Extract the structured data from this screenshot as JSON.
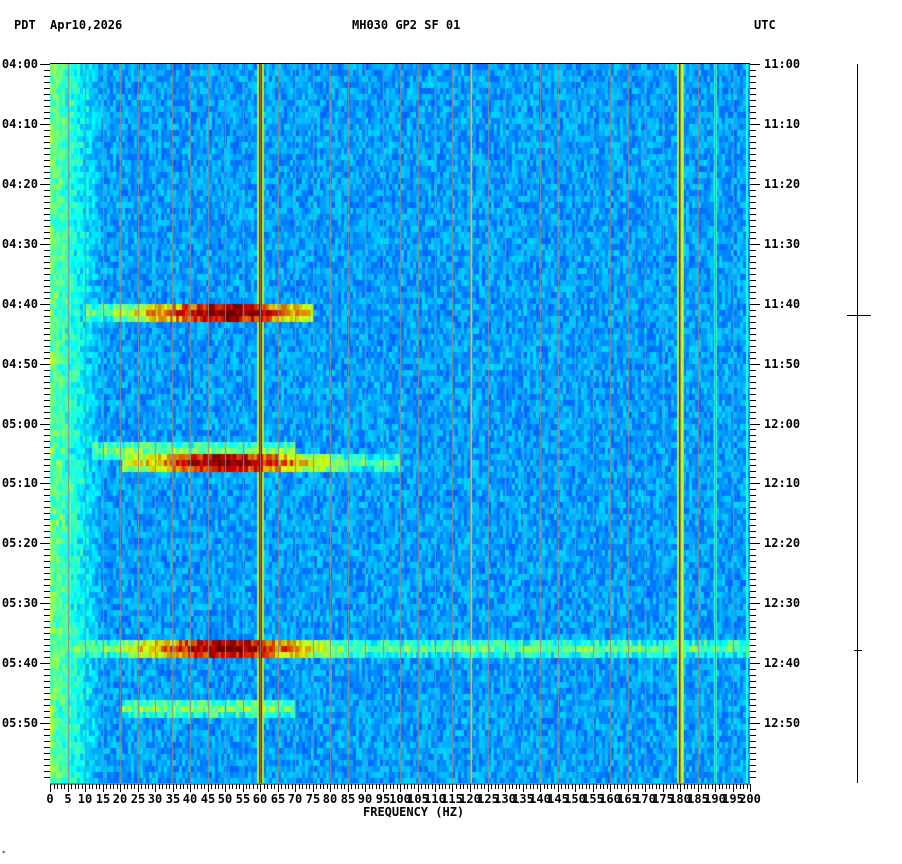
{
  "header": {
    "left_tz": "PDT",
    "date": "Apr10,2026",
    "station": "MH030 GP2 SF 01",
    "right_tz": "UTC"
  },
  "footer": {
    "corner_mark": "*"
  },
  "chart_data": {
    "type": "heatmap",
    "title": "MH030 GP2 SF 01",
    "subtitle": "Apr10,2026",
    "xlabel": "FREQUENCY (HZ)",
    "ylabel_left": "PDT",
    "ylabel_right": "UTC",
    "xlim": [
      0,
      200
    ],
    "x_ticks": [
      0,
      5,
      10,
      15,
      20,
      25,
      30,
      35,
      40,
      45,
      50,
      55,
      60,
      65,
      70,
      75,
      80,
      85,
      90,
      95,
      100,
      105,
      110,
      115,
      120,
      125,
      130,
      135,
      140,
      145,
      150,
      155,
      160,
      165,
      170,
      175,
      180,
      185,
      190,
      195,
      200
    ],
    "y_ticks_left": [
      "04:00",
      "04:10",
      "04:20",
      "04:30",
      "04:40",
      "04:50",
      "05:00",
      "05:10",
      "05:20",
      "05:30",
      "05:40",
      "05:50"
    ],
    "y_ticks_right": [
      "11:00",
      "11:10",
      "11:20",
      "11:30",
      "11:40",
      "11:50",
      "12:00",
      "12:10",
      "12:20",
      "12:30",
      "12:40",
      "12:50"
    ],
    "y_range_minutes": [
      0,
      120
    ],
    "minor_tick_minutes": 1,
    "grid": "vertical every 5 Hz",
    "colormap": "jet (blue low → red high)",
    "background_level": "blue",
    "persistent_lines_hz": [
      {
        "freq": 60,
        "intensity": "high (red core)"
      },
      {
        "freq": 120,
        "intensity": "medium (cyan/yellow)"
      },
      {
        "freq": 180,
        "intensity": "high (red core)"
      },
      {
        "freq": 190,
        "intensity": "low (light blue)"
      },
      {
        "freq": 199,
        "intensity": "low (light blue)"
      }
    ],
    "broadband_events": [
      {
        "time_pdt": "04:41",
        "freq_range_hz": [
          10,
          75
        ],
        "peak": "red around 20-70 Hz"
      },
      {
        "time_pdt": "05:04",
        "freq_range_hz": [
          12,
          70
        ],
        "peak": "cyan"
      },
      {
        "time_pdt": "05:06",
        "freq_range_hz": [
          20,
          100
        ],
        "peak": "red near 60 Hz"
      },
      {
        "time_pdt": "05:37",
        "freq_range_hz": [
          5,
          200
        ],
        "peak": "red around 40-70 Hz"
      },
      {
        "time_pdt": "05:47",
        "freq_range_hz": [
          20,
          70
        ],
        "peak": "cyan"
      }
    ],
    "side_markers_utc": [
      "11:41",
      "12:38"
    ]
  }
}
